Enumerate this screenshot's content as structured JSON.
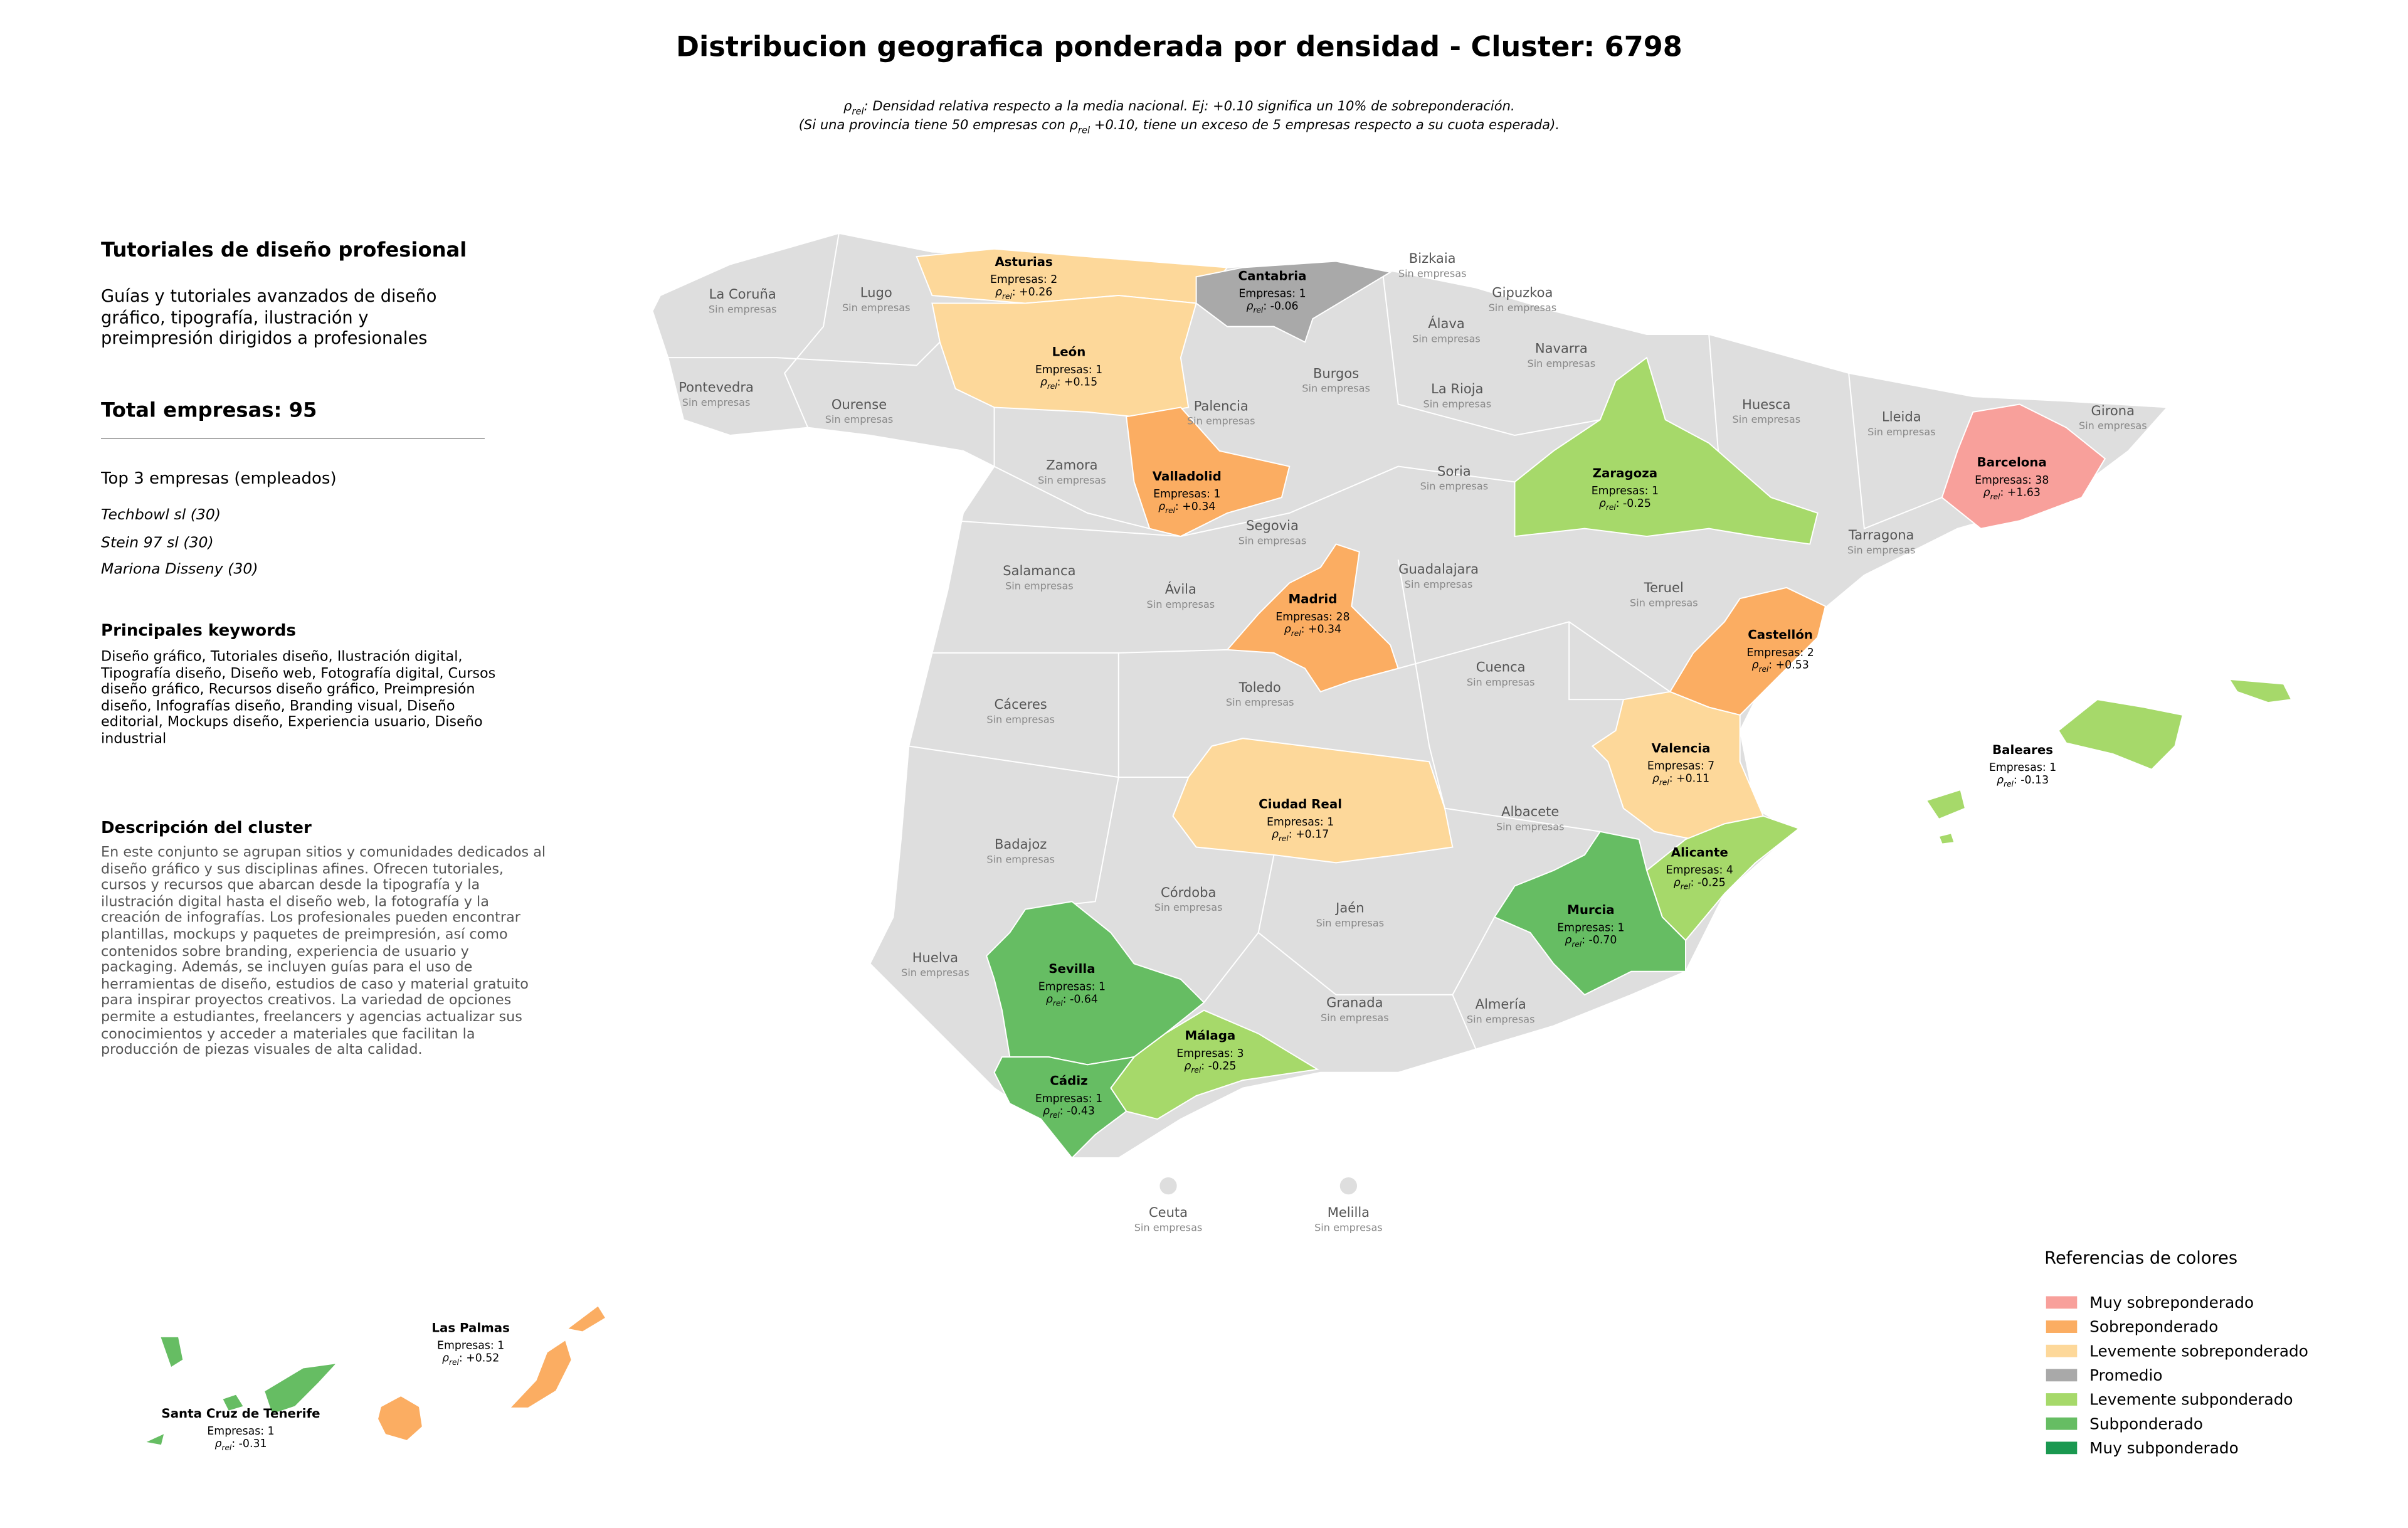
{
  "title": "Distribucion geografica ponderada por densidad - Cluster: 6798",
  "rho_symbol": "ρ",
  "rho_subscript": "rel",
  "rho_separator": ": ",
  "subtitle": [
    {
      "before": "",
      "after": ": Densidad relativa respecto a la media nacional. Ej: +0.10 significa un 10% de sobreponderación."
    },
    {
      "before": "(Si una provincia tiene 50 empresas con ",
      "after": " +0.10, tiene un exceso de 5 empresas respecto a su cuota esperada)."
    }
  ],
  "panel": {
    "heading": "Tutoriales de diseño profesional",
    "summary": "Guías y tutoriales avanzados de diseño gráfico, tipografía, ilustración y preimpresión dirigidos a profesionales",
    "total": "Total empresas: 95",
    "top_title": "Top 3 empresas (empleados)",
    "top": [
      "Techbowl sl (30)",
      "Stein 97 sl (30)",
      "Mariona Disseny (30)"
    ],
    "keywords_title": "Principales keywords",
    "keywords": "Diseño gráfico, Tutoriales diseño, Ilustración digital, Tipografía diseño, Diseño web, Fotografía digital, Cursos diseño gráfico, Recursos diseño gráfico, Preimpresión diseño, Infografías diseño, Branding visual, Diseño editorial, Mockups diseño, Experiencia usuario, Diseño industrial",
    "description_title": "Descripción del cluster",
    "description": "En este conjunto se agrupan sitios y comunidades dedicados al diseño gráfico y sus disciplinas afines. Ofrecen tutoriales, cursos y recursos que abarcan desde la tipografía y la ilustración digital hasta el diseño web, la fotografía y la creación de infografías. Los profesionales pueden encontrar plantillas, mockups y paquetes de preimpresión, así como contenidos sobre branding, experiencia de usuario y packaging. Además, se incluyen guías para el uso de herramientas de diseño, estudios de caso y material gratuito para inspirar proyectos creativos. La variedad de opciones permite a estudiantes, freelancers y agencias actualizar sus conocimientos y acceder a materiales que facilitan la producción de piezas visuales de alta calidad."
  },
  "provinces_with_data": [
    {
      "name": "Asturias",
      "empresas": "Empresas: 2",
      "rho": "+0.26",
      "color": "#fdd89a"
    },
    {
      "name": "León",
      "empresas": "Empresas: 1",
      "rho": "+0.15",
      "color": "#fdd89a"
    },
    {
      "name": "Cantabria",
      "empresas": "Empresas: 1",
      "rho": "-0.06",
      "color": "#a9a9a9"
    },
    {
      "name": "Valladolid",
      "empresas": "Empresas: 1",
      "rho": "+0.34",
      "color": "#fbad62"
    },
    {
      "name": "Zaragoza",
      "empresas": "Empresas: 1",
      "rho": "-0.25",
      "color": "#a6d96a"
    },
    {
      "name": "Barcelona",
      "empresas": "Empresas: 38",
      "rho": "+1.63",
      "color": "#f8a09b"
    },
    {
      "name": "Madrid",
      "empresas": "Empresas: 28",
      "rho": "+0.34",
      "color": "#fbad62"
    },
    {
      "name": "Castellón",
      "empresas": "Empresas: 2",
      "rho": "+0.53",
      "color": "#fbad62"
    },
    {
      "name": "Valencia",
      "empresas": "Empresas: 7",
      "rho": "+0.11",
      "color": "#fdd89a"
    },
    {
      "name": "Ciudad Real",
      "empresas": "Empresas: 1",
      "rho": "+0.17",
      "color": "#fdd89a"
    },
    {
      "name": "Alicante",
      "empresas": "Empresas: 4",
      "rho": "-0.25",
      "color": "#a6d96a"
    },
    {
      "name": "Murcia",
      "empresas": "Empresas: 1",
      "rho": "-0.70",
      "color": "#66bd63"
    },
    {
      "name": "Sevilla",
      "empresas": "Empresas: 1",
      "rho": "-0.64",
      "color": "#66bd63"
    },
    {
      "name": "Málaga",
      "empresas": "Empresas: 3",
      "rho": "-0.25",
      "color": "#a6d96a"
    },
    {
      "name": "Cádiz",
      "empresas": "Empresas: 1",
      "rho": "-0.43",
      "color": "#66bd63"
    },
    {
      "name": "Baleares",
      "empresas": "Empresas: 1",
      "rho": "-0.13",
      "color": "#a6d96a"
    },
    {
      "name": "Las Palmas",
      "empresas": "Empresas: 1",
      "rho": "+0.52",
      "color": "#fbad62"
    },
    {
      "name": "Santa Cruz de Tenerife",
      "empresas": "Empresas: 1",
      "rho": "-0.31",
      "color": "#66bd63"
    }
  ],
  "provinces_without_data": [
    {
      "name": "La Coruña",
      "status": "Sin empresas"
    },
    {
      "name": "Lugo",
      "status": "Sin empresas"
    },
    {
      "name": "Pontevedra",
      "status": "Sin empresas"
    },
    {
      "name": "Ourense",
      "status": "Sin empresas"
    },
    {
      "name": "Zamora",
      "status": "Sin empresas"
    },
    {
      "name": "Palencia",
      "status": "Sin empresas"
    },
    {
      "name": "Burgos",
      "status": "Sin empresas"
    },
    {
      "name": "Bizkaia",
      "status": "Sin empresas"
    },
    {
      "name": "Gipuzkoa",
      "status": "Sin empresas"
    },
    {
      "name": "Álava",
      "status": "Sin empresas"
    },
    {
      "name": "Navarra",
      "status": "Sin empresas"
    },
    {
      "name": "La Rioja",
      "status": "Sin empresas"
    },
    {
      "name": "Huesca",
      "status": "Sin empresas"
    },
    {
      "name": "Lleida",
      "status": "Sin empresas"
    },
    {
      "name": "Girona",
      "status": "Sin empresas"
    },
    {
      "name": "Soria",
      "status": "Sin empresas"
    },
    {
      "name": "Segovia",
      "status": "Sin empresas"
    },
    {
      "name": "Tarragona",
      "status": "Sin empresas"
    },
    {
      "name": "Salamanca",
      "status": "Sin empresas"
    },
    {
      "name": "Ávila",
      "status": "Sin empresas"
    },
    {
      "name": "Guadalajara",
      "status": "Sin empresas"
    },
    {
      "name": "Teruel",
      "status": "Sin empresas"
    },
    {
      "name": "Cuenca",
      "status": "Sin empresas"
    },
    {
      "name": "Toledo",
      "status": "Sin empresas"
    },
    {
      "name": "Cáceres",
      "status": "Sin empresas"
    },
    {
      "name": "Badajoz",
      "status": "Sin empresas"
    },
    {
      "name": "Albacete",
      "status": "Sin empresas"
    },
    {
      "name": "Córdoba",
      "status": "Sin empresas"
    },
    {
      "name": "Jaén",
      "status": "Sin empresas"
    },
    {
      "name": "Huelva",
      "status": "Sin empresas"
    },
    {
      "name": "Granada",
      "status": "Sin empresas"
    },
    {
      "name": "Almería",
      "status": "Sin empresas"
    },
    {
      "name": "Ceuta",
      "status": "Sin empresas"
    },
    {
      "name": "Melilla",
      "status": "Sin empresas"
    }
  ],
  "legend": {
    "title": "Referencias de colores",
    "items": [
      {
        "label": "Muy sobreponderado",
        "color": "#f8a09b"
      },
      {
        "label": "Sobreponderado",
        "color": "#fbad62"
      },
      {
        "label": "Levemente sobreponderado",
        "color": "#fdd89a"
      },
      {
        "label": "Promedio",
        "color": "#a9a9a9"
      },
      {
        "label": "Levemente subponderado",
        "color": "#a6d96a"
      },
      {
        "label": "Subponderado",
        "color": "#66bd63"
      },
      {
        "label": "Muy subponderado",
        "color": "#1a9850"
      }
    ]
  }
}
